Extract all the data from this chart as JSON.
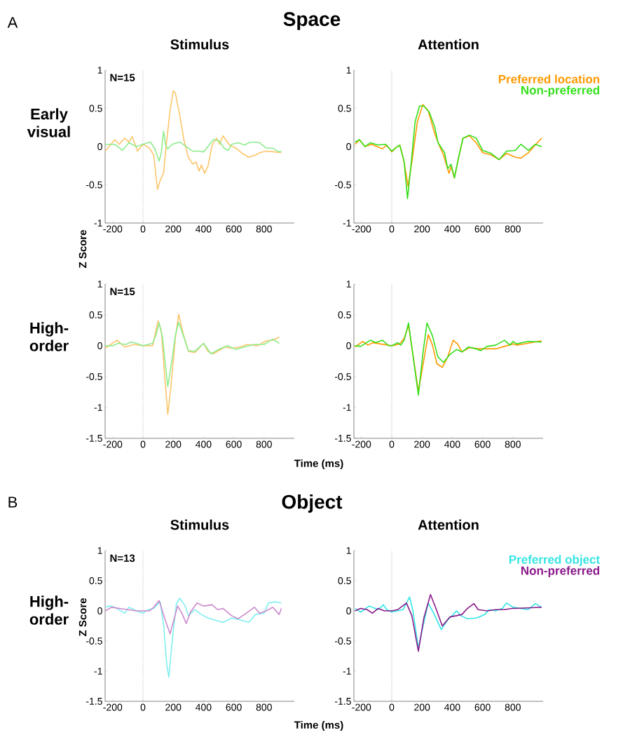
{
  "chart_data": [
    {
      "type": "line",
      "title": "Stimulus",
      "annotations": [
        "A",
        "Space",
        "Early visual",
        "N=15"
      ],
      "xlim": [
        -250,
        1000
      ],
      "ylim": [
        -1,
        1
      ],
      "xticks": [
        -200,
        0,
        200,
        400,
        600,
        800
      ],
      "yticks": [
        -1,
        -0.5,
        0,
        0.5,
        1
      ],
      "ref_lines": [
        {
          "axis": "x",
          "value": 0,
          "line_style": "dotted",
          "color": "#888888"
        }
      ],
      "series": [
        {
          "color": "#fcc56b",
          "x": [
            -250,
            -186,
            -157,
            -121,
            -93,
            -71,
            -36,
            0,
            43,
            71,
            96,
            114,
            136,
            157,
            179,
            200,
            214,
            243,
            271,
            300,
            329,
            350,
            371,
            386,
            407,
            429,
            457,
            486,
            507,
            529,
            571,
            614,
            657,
            700,
            743,
            771,
            814,
            871,
            914
          ],
          "values": [
            -0.06,
            0.09,
            0.03,
            0.11,
            0.06,
            0.13,
            -0.06,
            0.03,
            -0.02,
            -0.11,
            -0.56,
            -0.44,
            -0.35,
            0.08,
            0.47,
            0.73,
            0.7,
            0.41,
            0.08,
            -0.14,
            -0.23,
            -0.2,
            -0.32,
            -0.24,
            -0.35,
            -0.26,
            0.02,
            0.11,
            0.03,
            0.14,
            0.02,
            -0.02,
            -0.09,
            -0.14,
            -0.11,
            -0.08,
            -0.06,
            -0.07,
            -0.08
          ]
        },
        {
          "color": "#8ded8d",
          "x": [
            -250,
            -186,
            -136,
            -93,
            -43,
            0,
            50,
            79,
            107,
            121,
            136,
            150,
            164,
            193,
            243,
            286,
            329,
            371,
            400,
            429,
            464,
            500,
            536,
            564,
            586,
            629,
            671,
            700,
            743,
            771,
            814,
            857,
            900,
            914
          ],
          "values": [
            0.03,
            0.03,
            -0.05,
            0.05,
            0,
            0.03,
            0.06,
            -0.03,
            -0.19,
            -0.08,
            0.2,
            0.02,
            -0.03,
            0.03,
            0.06,
            0,
            -0.06,
            -0.06,
            -0.07,
            0,
            0.09,
            0.08,
            -0.02,
            -0.05,
            0.03,
            0.05,
            0.02,
            0.05,
            0.06,
            0.05,
            -0.02,
            -0.02,
            -0.07,
            -0.06
          ]
        }
      ]
    },
    {
      "type": "line",
      "title": "Attention",
      "legend": "top right",
      "xlim": [
        -250,
        1000
      ],
      "ylim": [
        -1,
        1
      ],
      "xticks": [
        -200,
        0,
        200,
        400,
        600,
        800
      ],
      "yticks": [
        -1,
        -0.5,
        0,
        0.5,
        1
      ],
      "ref_lines": [
        {
          "axis": "x",
          "value": 0,
          "line_style": "dotted",
          "color": "#888888"
        }
      ],
      "series": [
        {
          "name": "Preferred location",
          "color": "#ff9900",
          "x": [
            -242,
            -213,
            -177,
            -134,
            -62,
            -33,
            0,
            24,
            53,
            75,
            89,
            108,
            133,
            169,
            205,
            241,
            284,
            313,
            342,
            378,
            392,
            414,
            442,
            471,
            514,
            558,
            601,
            658,
            709,
            759,
            817,
            853,
            903,
            948,
            990
          ],
          "values": [
            0.03,
            0.09,
            0,
            0.03,
            -0.03,
            0.02,
            -0.07,
            -0.02,
            0.02,
            -0.14,
            -0.29,
            -0.52,
            -0.2,
            0.32,
            0.55,
            0.47,
            0.17,
            0.02,
            -0.11,
            -0.35,
            -0.26,
            -0.41,
            -0.14,
            0.11,
            0.14,
            0.05,
            -0.08,
            -0.11,
            -0.17,
            -0.09,
            -0.14,
            -0.15,
            -0.08,
            0.02,
            0.11
          ]
        },
        {
          "name": "Non-preferred",
          "color": "#33e01a",
          "x": [
            -242,
            -213,
            -177,
            -141,
            -91,
            -40,
            0,
            24,
            53,
            82,
            104,
            125,
            154,
            183,
            212,
            248,
            284,
            306,
            349,
            370,
            392,
            414,
            442,
            471,
            514,
            558,
            601,
            658,
            709,
            759,
            817,
            853,
            903,
            948,
            990
          ],
          "values": [
            0.06,
            0.09,
            0,
            0.05,
            0.02,
            0.03,
            -0.06,
            -0.02,
            0.02,
            -0.2,
            -0.68,
            -0.29,
            0.32,
            0.53,
            0.53,
            0.45,
            0.26,
            0.05,
            -0.08,
            -0.29,
            -0.23,
            -0.41,
            -0.14,
            0.11,
            0.15,
            0.11,
            -0.05,
            -0.09,
            -0.17,
            -0.06,
            -0.05,
            0.03,
            -0.05,
            0.03,
            0
          ]
        }
      ]
    },
    {
      "type": "line",
      "annotations": [
        "High-order",
        "N=15"
      ],
      "ylabel": "Z Score",
      "xlabel": "Time (ms)",
      "xlim": [
        -250,
        1000
      ],
      "ylim": [
        -1.5,
        1
      ],
      "xticks": [
        -200,
        0,
        200,
        400,
        600,
        800
      ],
      "yticks": [
        -1.5,
        -1,
        -0.5,
        0,
        0.5,
        1
      ],
      "ref_lines": [
        {
          "axis": "x",
          "value": 0,
          "line_style": "dotted",
          "color": "#888888"
        }
      ],
      "series": [
        {
          "color": "#fcc56b",
          "x": [
            -250,
            -171,
            -121,
            -57,
            0,
            64,
            100,
            121,
            143,
            164,
            186,
            214,
            236,
            264,
            300,
            343,
            400,
            429,
            464,
            500,
            543,
            586,
            643,
            686,
            757,
            814,
            857,
            900
          ],
          "values": [
            -0.04,
            0.09,
            -0.02,
            0.02,
            0,
            0,
            0.4,
            0.25,
            -0.47,
            -1.11,
            -0.63,
            0.13,
            0.51,
            0.21,
            -0.09,
            -0.11,
            0.04,
            -0.09,
            -0.13,
            -0.08,
            -0.02,
            -0.04,
            -0.02,
            0.02,
            0,
            0.08,
            0.09,
            0.14
          ]
        },
        {
          "color": "#8ded8d",
          "x": [
            -250,
            -200,
            -164,
            -114,
            -79,
            -43,
            0,
            64,
            86,
            107,
            129,
            164,
            193,
            214,
            236,
            271,
            300,
            343,
            400,
            450,
            500,
            557,
            614,
            671,
            729,
            800,
            857,
            900
          ],
          "values": [
            0,
            0,
            0.04,
            0.02,
            0.06,
            0.04,
            0,
            0.04,
            0.17,
            0.37,
            0.13,
            -0.66,
            -0.21,
            0.17,
            0.38,
            0.13,
            -0.08,
            -0.09,
            0.04,
            -0.13,
            -0.06,
            0,
            -0.06,
            -0.02,
            0.02,
            0.02,
            0.11,
            0.04
          ]
        }
      ]
    },
    {
      "type": "line",
      "xlim": [
        -250,
        1000
      ],
      "ylim": [
        -1.5,
        1
      ],
      "xticks": [
        -200,
        0,
        200,
        400,
        600,
        800
      ],
      "yticks": [
        -1.5,
        -1,
        -0.5,
        0,
        0.5,
        1
      ],
      "ref_lines": [
        {
          "axis": "x",
          "value": 0,
          "line_style": "dotted",
          "color": "#888888"
        }
      ],
      "series": [
        {
          "color": "#ff9900",
          "x": [
            -242,
            -192,
            -156,
            -127,
            -76,
            0,
            53,
            82,
            111,
            140,
            176,
            205,
            241,
            269,
            298,
            334,
            370,
            406,
            435,
            464,
            514,
            572,
            630,
            687,
            745,
            802,
            824,
            900,
            990
          ],
          "values": [
            -0.02,
            0.07,
            0.01,
            0.05,
            0.03,
            0,
            0.03,
            0.12,
            0.33,
            -0.14,
            -0.74,
            -0.33,
            0.18,
            0.01,
            -0.29,
            -0.35,
            -0.18,
            0.09,
            0.03,
            -0.1,
            -0.03,
            -0.05,
            -0.05,
            -0.05,
            -0.01,
            0.03,
            0.01,
            0.04,
            0.08
          ]
        },
        {
          "color": "#33e01a",
          "x": [
            -242,
            -206,
            -141,
            -105,
            -62,
            -19,
            0,
            39,
            60,
            82,
            111,
            133,
            176,
            205,
            233,
            269,
            305,
            342,
            385,
            428,
            464,
            507,
            558,
            587,
            630,
            687,
            745,
            781,
            802,
            824,
            900,
            990
          ],
          "values": [
            0,
            -0.01,
            0.09,
            0.05,
            0.09,
            0,
            0,
            0.05,
            0.01,
            0.09,
            0.37,
            -0.03,
            -0.8,
            -0.14,
            0.37,
            0.16,
            -0.18,
            -0.27,
            -0.14,
            -0.06,
            -0.1,
            -0.02,
            -0.05,
            -0.08,
            -0.01,
            0.01,
            0.09,
            0.01,
            0.07,
            0.03,
            0.07,
            0.06
          ]
        }
      ]
    },
    {
      "type": "line",
      "title": "Stimulus",
      "annotations": [
        "B",
        "Object",
        "High-order",
        "N=13"
      ],
      "ylabel": "Z Score",
      "xlabel": "Time (ms)",
      "xlim": [
        -250,
        1000
      ],
      "ylim": [
        -1.5,
        1
      ],
      "xticks": [
        -200,
        0,
        200,
        400,
        600,
        800
      ],
      "yticks": [
        -1.5,
        -1,
        -0.5,
        0,
        0.5,
        1
      ],
      "ref_lines": [
        {
          "axis": "x",
          "value": 0,
          "line_style": "dotted",
          "color": "#888888"
        }
      ],
      "series": [
        {
          "color": "#80eeee",
          "x": [
            -250,
            -214,
            -186,
            -121,
            -93,
            -43,
            0,
            36,
            71,
            114,
            136,
            157,
            171,
            193,
            221,
            243,
            279,
            300,
            343,
            386,
            429,
            471,
            529,
            586,
            643,
            700,
            743,
            800,
            829,
            871,
            914
          ],
          "values": [
            0.06,
            0.08,
            0.06,
            -0.04,
            0.06,
            0,
            -0.04,
            0.02,
            0.04,
            0.15,
            -0.23,
            -0.88,
            -1.1,
            -0.5,
            0.12,
            0.21,
            0.08,
            -0.08,
            0.02,
            -0.06,
            -0.12,
            -0.15,
            -0.19,
            -0.12,
            -0.15,
            -0.19,
            -0.06,
            -0.04,
            0.13,
            0.15,
            0.13
          ]
        },
        {
          "color": "#cc88cc",
          "x": [
            -250,
            -207,
            -157,
            -100,
            -43,
            0,
            43,
            71,
            107,
            143,
            179,
            200,
            229,
            257,
            286,
            314,
            357,
            400,
            457,
            493,
            529,
            586,
            629,
            671,
            736,
            771,
            814,
            857,
            900,
            914
          ],
          "values": [
            0,
            0.06,
            0.04,
            0.02,
            0,
            0,
            0,
            0.06,
            0.17,
            -0.12,
            -0.38,
            -0.19,
            0.08,
            -0.04,
            -0.21,
            -0.02,
            0.13,
            0.08,
            0.1,
            0.02,
            0.04,
            -0.08,
            -0.13,
            -0.06,
            0.06,
            -0.04,
            0,
            0.06,
            -0.06,
            0.04
          ]
        }
      ]
    },
    {
      "type": "line",
      "title": "Attention",
      "legend": "top right",
      "xlim": [
        -250,
        1000
      ],
      "ylim": [
        -1.5,
        1
      ],
      "xticks": [
        -200,
        0,
        200,
        400,
        600,
        800
      ],
      "yticks": [
        -1.5,
        -1,
        -0.5,
        0,
        0.5,
        1
      ],
      "ref_lines": [
        {
          "axis": "x",
          "value": 0,
          "line_style": "dotted",
          "color": "#888888"
        }
      ],
      "series": [
        {
          "name": "Preferred object",
          "color": "#33e5e5",
          "x": [
            -242,
            -206,
            -148,
            -91,
            -55,
            -33,
            0,
            39,
            75,
            118,
            140,
            176,
            205,
            241,
            277,
            327,
            370,
            399,
            428,
            457,
            500,
            558,
            615,
            644,
            687,
            730,
            759,
            802,
            900,
            950,
            990
          ],
          "values": [
            0.04,
            -0.02,
            0.08,
            0.02,
            0.1,
            0.02,
            -0.02,
            0,
            0.02,
            0.23,
            0,
            -0.62,
            -0.27,
            0.13,
            -0.04,
            -0.31,
            -0.15,
            -0.08,
            0,
            -0.08,
            -0.13,
            -0.12,
            -0.06,
            0.02,
            0,
            0.04,
            0.13,
            0.06,
            0.02,
            0.12,
            0.06
          ]
        },
        {
          "name": "Non-preferred",
          "color": "#8b1a8b",
          "x": [
            -242,
            -206,
            -163,
            -127,
            -91,
            -48,
            0,
            39,
            97,
            133,
            176,
            212,
            256,
            292,
            334,
            385,
            428,
            464,
            500,
            543,
            571,
            630,
            687,
            745,
            795,
            817,
            900,
            990
          ],
          "values": [
            0,
            0.04,
            0.02,
            -0.04,
            0.04,
            0,
            0,
            0.02,
            0.13,
            -0.08,
            -0.67,
            -0.12,
            0.27,
            0.04,
            -0.25,
            -0.1,
            -0.08,
            -0.06,
            0.04,
            0.12,
            0.02,
            0,
            0.02,
            0.02,
            0.04,
            0.04,
            0.05,
            0.06
          ]
        }
      ]
    }
  ]
}
